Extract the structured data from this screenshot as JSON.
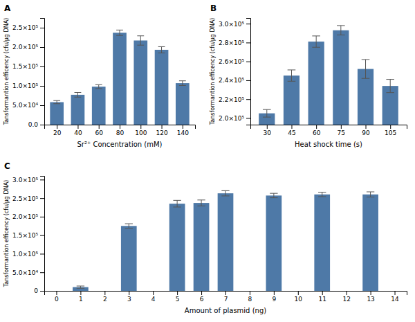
{
  "chart_data": [
    {
      "type": "bar",
      "title": "A",
      "xlabel": "Sr²⁺ Concentration (mM)",
      "ylabel": "Tansformantion efficency (cfu/μg DNA)",
      "x": [
        20,
        40,
        60,
        80,
        100,
        120,
        140
      ],
      "values": [
        58000,
        77000,
        98000,
        237000,
        217000,
        193000,
        107000
      ],
      "yerr": [
        4000,
        6000,
        5000,
        7000,
        12000,
        8000,
        6000
      ],
      "xlim": [
        8,
        152
      ],
      "xticks": [
        20,
        40,
        60,
        80,
        100,
        120,
        140
      ],
      "ylim": [
        0,
        275000
      ],
      "yticks": [
        {
          "value": 0,
          "label": "0.0"
        },
        {
          "value": 50000,
          "label": "5.0×10⁴"
        },
        {
          "value": 100000,
          "label": "1.0×10⁵"
        },
        {
          "value": 150000,
          "label": "1.5×10⁵"
        },
        {
          "value": 200000,
          "label": "2.0×10⁵"
        },
        {
          "value": 250000,
          "label": "2.5×10⁵"
        }
      ],
      "grid": false
    },
    {
      "type": "bar",
      "title": "B",
      "xlabel": "Heat shock time (s)",
      "ylabel": "Tansformantion efficency (cfu/μg DNA)",
      "x": [
        30,
        45,
        60,
        75,
        90,
        105
      ],
      "values": [
        205000,
        245000,
        281000,
        293000,
        252000,
        234000
      ],
      "yerr": [
        4000,
        6000,
        6000,
        5000,
        10000,
        7000
      ],
      "xlim": [
        20,
        115
      ],
      "xticks": [
        30,
        45,
        60,
        75,
        90,
        105
      ],
      "ylim": [
        193000,
        306000
      ],
      "yticks": [
        {
          "value": 200000,
          "label": "2.0×10⁵"
        },
        {
          "value": 220000,
          "label": "2.2×10⁵"
        },
        {
          "value": 240000,
          "label": "2.4×10⁵"
        },
        {
          "value": 260000,
          "label": "2.6×10⁵"
        },
        {
          "value": 280000,
          "label": "2.8×10⁵"
        },
        {
          "value": 300000,
          "label": "3.0×10⁵"
        }
      ],
      "grid": false
    },
    {
      "type": "bar",
      "title": "C",
      "xlabel": "Amount of plasmid (ng)",
      "ylabel": "Tansformantion efficency (cfu/μg DNA)",
      "x": [
        1,
        3,
        5,
        6,
        7,
        9,
        11,
        13
      ],
      "values": [
        10000,
        175000,
        235000,
        237000,
        263000,
        257000,
        260000,
        260000
      ],
      "yerr": [
        3000,
        6000,
        9000,
        8000,
        7000,
        6000,
        6000,
        7000
      ],
      "xlim": [
        -0.5,
        14.5
      ],
      "xticks": [
        0,
        1,
        2,
        3,
        4,
        5,
        6,
        7,
        8,
        9,
        10,
        11,
        12,
        13,
        14
      ],
      "ylim": [
        0,
        310000
      ],
      "yticks": [
        0,
        {
          "value": 50000,
          "label": "5.0×10⁴"
        },
        {
          "value": 100000,
          "label": "1.0×10⁵"
        },
        {
          "value": 150000,
          "label": "1.5×10⁵"
        },
        {
          "value": 200000,
          "label": "2.0×10⁵"
        },
        {
          "value": 250000,
          "label": "2.5×10⁵"
        },
        {
          "value": 300000,
          "label": "3.0×10⁵"
        }
      ],
      "grid": false
    }
  ]
}
